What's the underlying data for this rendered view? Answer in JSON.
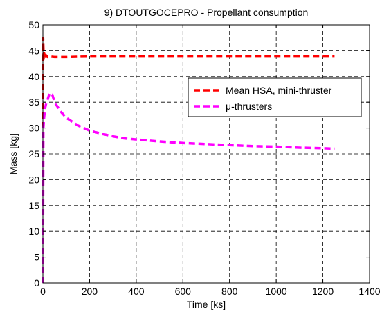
{
  "chart_data": {
    "type": "line",
    "title": "9) DTOUTGOCEPRO - Propellant consumption",
    "xlabel": "Time [ks]",
    "ylabel": "Mass [kg]",
    "xlim": [
      0,
      1400
    ],
    "ylim": [
      0,
      50
    ],
    "xticks": [
      0,
      200,
      400,
      600,
      800,
      1000,
      1200,
      1400
    ],
    "yticks": [
      0,
      5,
      10,
      15,
      20,
      25,
      30,
      35,
      40,
      45,
      50
    ],
    "grid": true,
    "legend_position": "right",
    "series": [
      {
        "name": "Mean HSA, mini-thruster",
        "color": "#ff0000",
        "style": "dashed",
        "x": [
          0,
          1,
          2,
          3,
          5,
          8,
          12,
          20,
          30,
          50,
          100,
          200,
          400,
          600,
          800,
          1000,
          1250
        ],
        "y": [
          0,
          47.5,
          45.5,
          43.2,
          44.5,
          43.5,
          44.2,
          43.8,
          43.9,
          43.8,
          43.8,
          43.9,
          43.9,
          43.9,
          43.9,
          43.9,
          43.9
        ]
      },
      {
        "name": "μ-thrusters",
        "color": "#ff00ff",
        "style": "dashed",
        "x": [
          0,
          2,
          5,
          10,
          15,
          20,
          25,
          30,
          40,
          50,
          60,
          80,
          100,
          150,
          200,
          250,
          300,
          350,
          400,
          500,
          600,
          700,
          800,
          900,
          1000,
          1100,
          1200,
          1250
        ],
        "y": [
          0,
          30,
          32,
          34,
          35,
          35.5,
          36.2,
          36.8,
          36.5,
          35,
          34.3,
          33,
          32,
          30.5,
          29.5,
          28.9,
          28.4,
          28,
          27.8,
          27.4,
          27.1,
          26.9,
          26.7,
          26.5,
          26.4,
          26.2,
          26.1,
          26
        ]
      }
    ]
  }
}
